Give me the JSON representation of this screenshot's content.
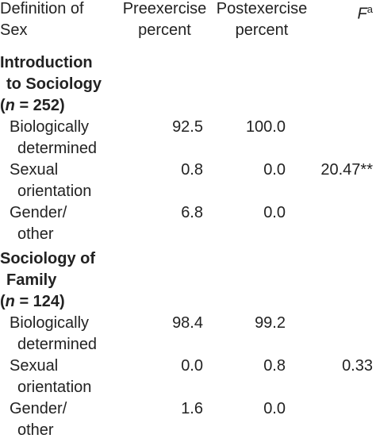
{
  "header": {
    "columns": [
      [
        "Definition of",
        "Sex"
      ],
      [
        "Preexercise",
        "percent"
      ],
      [
        "Postexercise",
        "percent"
      ]
    ],
    "f_label": "F",
    "f_superscript": "a"
  },
  "sections": [
    {
      "title": [
        "Introduction",
        "to Sociology"
      ],
      "sample_open": "(",
      "sample_var": "n",
      "sample_rest": " = 252)",
      "rows": [
        {
          "label": [
            "Biologically",
            "determined"
          ],
          "pre": "92.5",
          "post": "100.0"
        },
        {
          "label": [
            "Sexual",
            "orientation"
          ],
          "pre": "0.8",
          "post": "0.0",
          "f": "20.47**"
        },
        {
          "label": [
            "Gender/",
            "other"
          ],
          "pre": "6.8",
          "post": "0.0"
        }
      ]
    },
    {
      "title": [
        "Sociology of",
        "Family"
      ],
      "sample_open": "(",
      "sample_var": "n",
      "sample_rest": " = 124)",
      "rows": [
        {
          "label": [
            "Biologically",
            "determined"
          ],
          "pre": "98.4",
          "post": "99.2"
        },
        {
          "label": [
            "Sexual",
            "orientation"
          ],
          "pre": "0.0",
          "post": "0.8",
          "f": "0.33"
        },
        {
          "label": [
            "Gender/",
            "other"
          ],
          "pre": "1.6",
          "post": "0.0"
        }
      ]
    }
  ]
}
